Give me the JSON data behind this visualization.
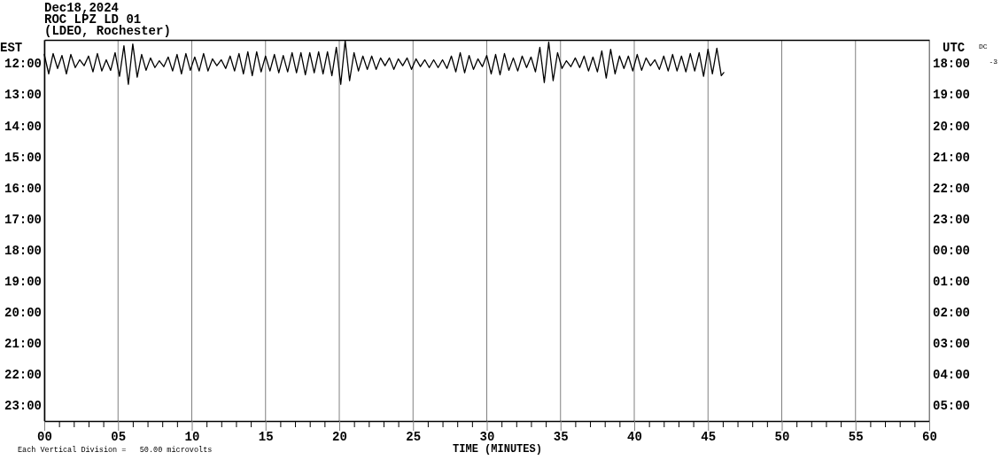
{
  "chart_data": {
    "type": "line",
    "title": "Dec18,2024",
    "subtitle": "ROC LPZ LD 01\n(LDEO, Rochester)",
    "xlabel": "TIME (MINUTES)",
    "ylabel": "EST",
    "y2label": "UTC",
    "annotations": [
      "DC",
      "-3",
      "Each Vertical Division =   50.00 microvolts"
    ],
    "xlim": [
      0,
      60
    ],
    "xticks": [
      {
        "value": 0,
        "label": "00"
      },
      {
        "value": 1,
        "label": null
      },
      {
        "value": 2,
        "label": null
      },
      {
        "value": 3,
        "label": null
      },
      {
        "value": 4,
        "label": null
      },
      {
        "value": 5,
        "label": "05"
      },
      {
        "value": 6,
        "label": null
      },
      {
        "value": 7,
        "label": null
      },
      {
        "value": 8,
        "label": null
      },
      {
        "value": 9,
        "label": null
      },
      10,
      {
        "value": 11,
        "label": null
      },
      {
        "value": 12,
        "label": null
      },
      {
        "value": 13,
        "label": null
      },
      {
        "value": 14,
        "label": null
      },
      15,
      {
        "value": 16,
        "label": null
      },
      {
        "value": 17,
        "label": null
      },
      {
        "value": 18,
        "label": null
      },
      {
        "value": 19,
        "label": null
      },
      20,
      {
        "value": 21,
        "label": null
      },
      {
        "value": 22,
        "label": null
      },
      {
        "value": 23,
        "label": null
      },
      {
        "value": 24,
        "label": null
      },
      25,
      {
        "value": 26,
        "label": null
      },
      {
        "value": 27,
        "label": null
      },
      {
        "value": 28,
        "label": null
      },
      {
        "value": 29,
        "label": null
      },
      30,
      {
        "value": 31,
        "label": null
      },
      {
        "value": 32,
        "label": null
      },
      {
        "value": 33,
        "label": null
      },
      {
        "value": 34,
        "label": null
      },
      35,
      {
        "value": 36,
        "label": null
      },
      {
        "value": 37,
        "label": null
      },
      {
        "value": 38,
        "label": null
      },
      {
        "value": 39,
        "label": null
      },
      40,
      {
        "value": 41,
        "label": null
      },
      {
        "value": 42,
        "label": null
      },
      {
        "value": 43,
        "label": null
      },
      {
        "value": 44,
        "label": null
      },
      45,
      {
        "value": 46,
        "label": null
      },
      {
        "value": 47,
        "label": null
      },
      {
        "value": 48,
        "label": null
      },
      {
        "value": 49,
        "label": null
      },
      50,
      {
        "value": 51,
        "label": null
      },
      {
        "value": 52,
        "label": null
      },
      {
        "value": 53,
        "label": null
      },
      {
        "value": 54,
        "label": null
      },
      55,
      {
        "value": 56,
        "label": null
      },
      {
        "value": 57,
        "label": null
      },
      {
        "value": 58,
        "label": null
      },
      {
        "value": 59,
        "label": null
      },
      60
    ],
    "ylim": [
      23.5,
      11.25
    ],
    "yticks": [
      {
        "value": 12,
        "label": "12:00"
      },
      {
        "value": 13,
        "label": "13:00"
      },
      {
        "value": 14,
        "label": "14:00"
      },
      {
        "value": 15,
        "label": "15:00"
      },
      {
        "value": 16,
        "label": "16:00"
      },
      {
        "value": 17,
        "label": "17:00"
      },
      {
        "value": 18,
        "label": "18:00"
      },
      {
        "value": 19,
        "label": "19:00"
      },
      {
        "value": 20,
        "label": "20:00"
      },
      {
        "value": 21,
        "label": "21:00"
      },
      {
        "value": 22,
        "label": "22:00"
      },
      {
        "value": 23,
        "label": "23:00"
      }
    ],
    "y2lim": [
      "2024-12-19T05:30",
      "2024-12-18T17:15"
    ],
    "y2ticks": [
      {
        "value": "2024-12-18T18:00",
        "label": "18:00"
      },
      {
        "value": "2024-12-18T19:00",
        "label": "19:00"
      },
      {
        "value": "2024-12-18T20:00",
        "label": "20:00"
      },
      {
        "value": "2024-12-18T21:00",
        "label": "21:00"
      },
      {
        "value": "2024-12-18T22:00",
        "label": "22:00"
      },
      {
        "value": "2024-12-18T23:00",
        "label": "23:00"
      },
      {
        "value": "2024-12-19T00:00",
        "label": "00:00"
      },
      {
        "value": "2024-12-19T01:00",
        "label": "01:00"
      },
      {
        "value": "2024-12-19T02:00",
        "label": "02:00"
      },
      {
        "value": "2024-12-19T03:00",
        "label": "03:00"
      },
      {
        "value": "2024-12-19T04:00",
        "label": "04:00"
      },
      {
        "value": "2024-12-19T05:00",
        "label": "05:00"
      }
    ],
    "grid": "x",
    "series": [
      {
        "color": "#000000",
        "x": [
          0,
          0.3,
          0.6,
          0.9,
          1.2,
          1.5,
          1.8,
          2.1,
          2.4,
          2.7,
          3,
          3.3,
          3.6,
          3.9,
          4.2,
          4.5,
          4.8,
          5.1,
          5.4,
          5.7,
          6,
          6.3,
          6.6,
          6.9,
          7.2,
          7.5,
          7.8,
          8.1,
          8.4,
          8.7,
          9,
          9.3,
          9.6,
          9.9,
          10.2,
          10.5,
          10.8,
          11.1,
          11.4,
          11.7,
          12,
          12.3,
          12.6,
          12.9,
          13.2,
          13.5,
          13.8,
          14.1,
          14.4,
          14.7,
          15,
          15.3,
          15.6,
          15.9,
          16.2,
          16.5,
          16.8,
          17.1,
          17.4,
          17.7,
          18,
          18.3,
          18.6,
          18.9,
          19.2,
          19.5,
          19.8,
          20.1,
          20.4,
          20.7,
          21,
          21.3,
          21.6,
          21.9,
          22.2,
          22.5,
          22.8,
          23.1,
          23.4,
          23.7,
          24,
          24.3,
          24.6,
          24.9,
          25.2,
          25.5,
          25.8,
          26.1,
          26.4,
          26.7,
          27,
          27.3,
          27.6,
          27.9,
          28.2,
          28.5,
          28.8,
          29.1,
          29.4,
          29.7,
          30,
          30.3,
          30.6,
          30.9,
          31.2,
          31.5,
          31.8,
          32.1,
          32.4,
          32.7,
          33,
          33.3,
          33.6,
          33.9,
          34.2,
          34.5,
          34.8,
          35.1,
          35.4,
          35.7,
          36,
          36.3,
          36.6,
          36.9,
          37.2,
          37.5,
          37.8,
          38.1,
          38.4,
          38.7,
          39,
          39.3,
          39.6,
          39.9,
          40.2,
          40.5,
          40.8,
          41.1,
          41.4,
          41.7,
          42,
          42.3,
          42.6,
          42.9,
          43.2,
          43.5,
          43.8,
          44.1,
          44.4,
          44.7,
          45,
          45.3,
          45.6,
          45.9,
          46.07
        ],
        "values": [
          11.72,
          12.34,
          11.69,
          12.17,
          11.75,
          12.34,
          11.72,
          12.14,
          11.89,
          12.08,
          11.77,
          12.28,
          11.69,
          12.25,
          11.89,
          12.23,
          11.66,
          12.42,
          11.44,
          12.68,
          11.38,
          12.45,
          11.72,
          12.23,
          11.83,
          12.14,
          11.92,
          12.11,
          11.8,
          12.25,
          11.72,
          12.34,
          11.69,
          12.23,
          11.8,
          12.25,
          11.69,
          12.25,
          11.86,
          12.08,
          11.89,
          12.17,
          11.77,
          12.25,
          11.69,
          12.34,
          11.63,
          12.4,
          11.63,
          12.28,
          11.77,
          12.25,
          11.72,
          12.31,
          11.75,
          12.28,
          11.66,
          12.31,
          11.66,
          12.37,
          11.66,
          12.31,
          11.63,
          12.34,
          11.63,
          12.4,
          11.49,
          12.68,
          11.27,
          12.56,
          11.66,
          12.25,
          11.77,
          12.2,
          11.77,
          12.2,
          11.83,
          12.08,
          11.83,
          12.2,
          11.86,
          12.08,
          11.83,
          12.2,
          11.86,
          12.11,
          11.89,
          12.14,
          11.89,
          12.14,
          11.89,
          12.17,
          11.77,
          12.28,
          11.66,
          12.31,
          11.75,
          12.2,
          11.86,
          12.11,
          11.75,
          12.34,
          11.72,
          12.37,
          11.69,
          12.23,
          11.83,
          12.25,
          11.77,
          12.14,
          11.8,
          12.28,
          11.49,
          12.62,
          11.32,
          12.56,
          11.66,
          12.17,
          11.92,
          12.11,
          11.83,
          12.14,
          11.77,
          12.25,
          11.8,
          12.28,
          11.6,
          12.48,
          11.55,
          12.34,
          11.77,
          12.17,
          11.77,
          12.25,
          11.72,
          12.23,
          11.83,
          12.08,
          11.89,
          12.2,
          11.77,
          12.25,
          11.72,
          12.25,
          11.77,
          12.28,
          11.69,
          12.25,
          11.66,
          12.42,
          11.55,
          12.34,
          11.52,
          12.4,
          12.3
        ]
      }
    ]
  }
}
